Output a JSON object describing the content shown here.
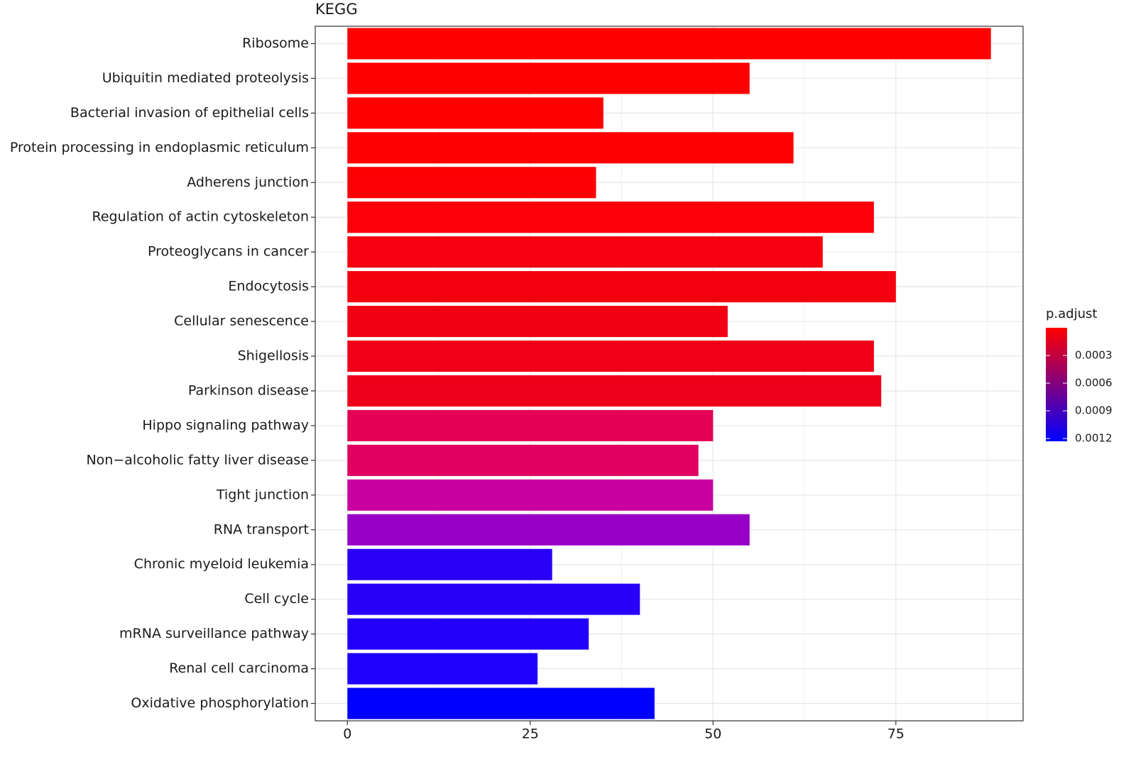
{
  "chart_data": {
    "type": "barh",
    "title": "KEGG",
    "categories": [
      "Ribosome",
      "Ubiquitin mediated proteolysis",
      "Bacterial invasion of epithelial cells",
      "Protein processing in endoplasmic reticulum",
      "Adherens junction",
      "Regulation of actin cytoskeleton",
      "Proteoglycans in cancer",
      "Endocytosis",
      "Cellular senescence",
      "Shigellosis",
      "Parkinson disease",
      "Hippo signaling pathway",
      "Non−alcoholic fatty liver disease",
      "Tight junction",
      "RNA transport",
      "Chronic myeloid leukemia",
      "Cell cycle",
      "mRNA surveillance pathway",
      "Renal cell carcinoma",
      "Oxidative phosphorylation"
    ],
    "values": [
      88,
      55,
      35,
      61,
      34,
      72,
      65,
      75,
      52,
      72,
      73,
      50,
      48,
      50,
      55,
      28,
      40,
      33,
      26,
      42
    ],
    "colors": [
      "#ff0000",
      "#ff0000",
      "#ff0000",
      "#fe0002",
      "#fd0004",
      "#fb0008",
      "#f7000f",
      "#f5000f",
      "#f20014",
      "#f00018",
      "#ee001a",
      "#e40055",
      "#e0005f",
      "#c800a0",
      "#9800c8",
      "#2a00f8",
      "#2800f8",
      "#2200fa",
      "#1e00fb",
      "#0000ff"
    ],
    "xlim": [
      -4.4,
      92.4
    ],
    "xticks": [
      0,
      25,
      50,
      75
    ],
    "grid": true,
    "color_scale": {
      "title": "p.adjust",
      "lim": [
        0,
        0.00123
      ],
      "ticks": [
        0.0003,
        0.0006,
        0.0009,
        0.0012
      ],
      "low_color": "#ff0000",
      "high_color": "#0000ff"
    }
  }
}
